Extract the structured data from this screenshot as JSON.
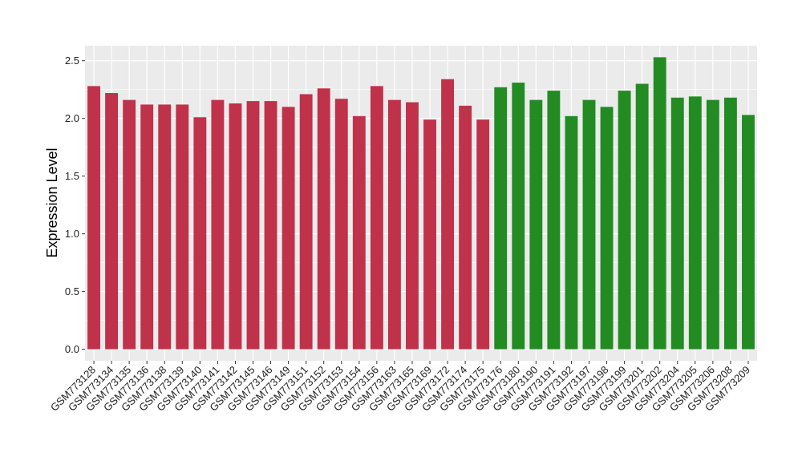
{
  "chart_data": {
    "type": "bar",
    "title": "",
    "xlabel": "",
    "ylabel": "Expression Level",
    "ylim": [
      -0.1,
      2.63
    ],
    "yticks": [
      "0.0",
      "0.5",
      "1.0",
      "1.5",
      "2.0",
      "2.5"
    ],
    "ytick_values": [
      0.0,
      0.5,
      1.0,
      1.5,
      2.0,
      2.5
    ],
    "grid": true,
    "legend": "none",
    "colors": {
      "group_1": "#C0314A",
      "group_2": "#228B22",
      "panel_bg": "#EBEBEB",
      "grid": "#FFFFFF"
    },
    "categories": [
      "GSM773128",
      "GSM773134",
      "GSM773135",
      "GSM773136",
      "GSM773138",
      "GSM773139",
      "GSM773140",
      "GSM773141",
      "GSM773142",
      "GSM773145",
      "GSM773146",
      "GSM773149",
      "GSM773151",
      "GSM773152",
      "GSM773153",
      "GSM773154",
      "GSM773156",
      "GSM773163",
      "GSM773165",
      "GSM773169",
      "GSM773172",
      "GSM773174",
      "GSM773175",
      "GSM773176",
      "GSM773180",
      "GSM773190",
      "GSM773191",
      "GSM773192",
      "GSM773197",
      "GSM773198",
      "GSM773199",
      "GSM773201",
      "GSM773202",
      "GSM773204",
      "GSM773205",
      "GSM773206",
      "GSM773208",
      "GSM773209"
    ],
    "values": [
      2.28,
      2.22,
      2.16,
      2.12,
      2.12,
      2.12,
      2.01,
      2.16,
      2.13,
      2.15,
      2.15,
      2.1,
      2.21,
      2.26,
      2.17,
      2.02,
      2.28,
      2.16,
      2.14,
      1.99,
      2.34,
      2.11,
      1.99,
      2.27,
      2.31,
      2.16,
      2.24,
      2.02,
      2.16,
      2.1,
      2.24,
      2.3,
      2.53,
      2.18,
      2.19,
      2.16,
      2.18,
      2.03
    ],
    "groups": [
      1,
      1,
      1,
      1,
      1,
      1,
      1,
      1,
      1,
      1,
      1,
      1,
      1,
      1,
      1,
      1,
      1,
      1,
      1,
      1,
      1,
      1,
      1,
      2,
      2,
      2,
      2,
      2,
      2,
      2,
      2,
      2,
      2,
      2,
      2,
      2,
      2,
      2
    ]
  }
}
